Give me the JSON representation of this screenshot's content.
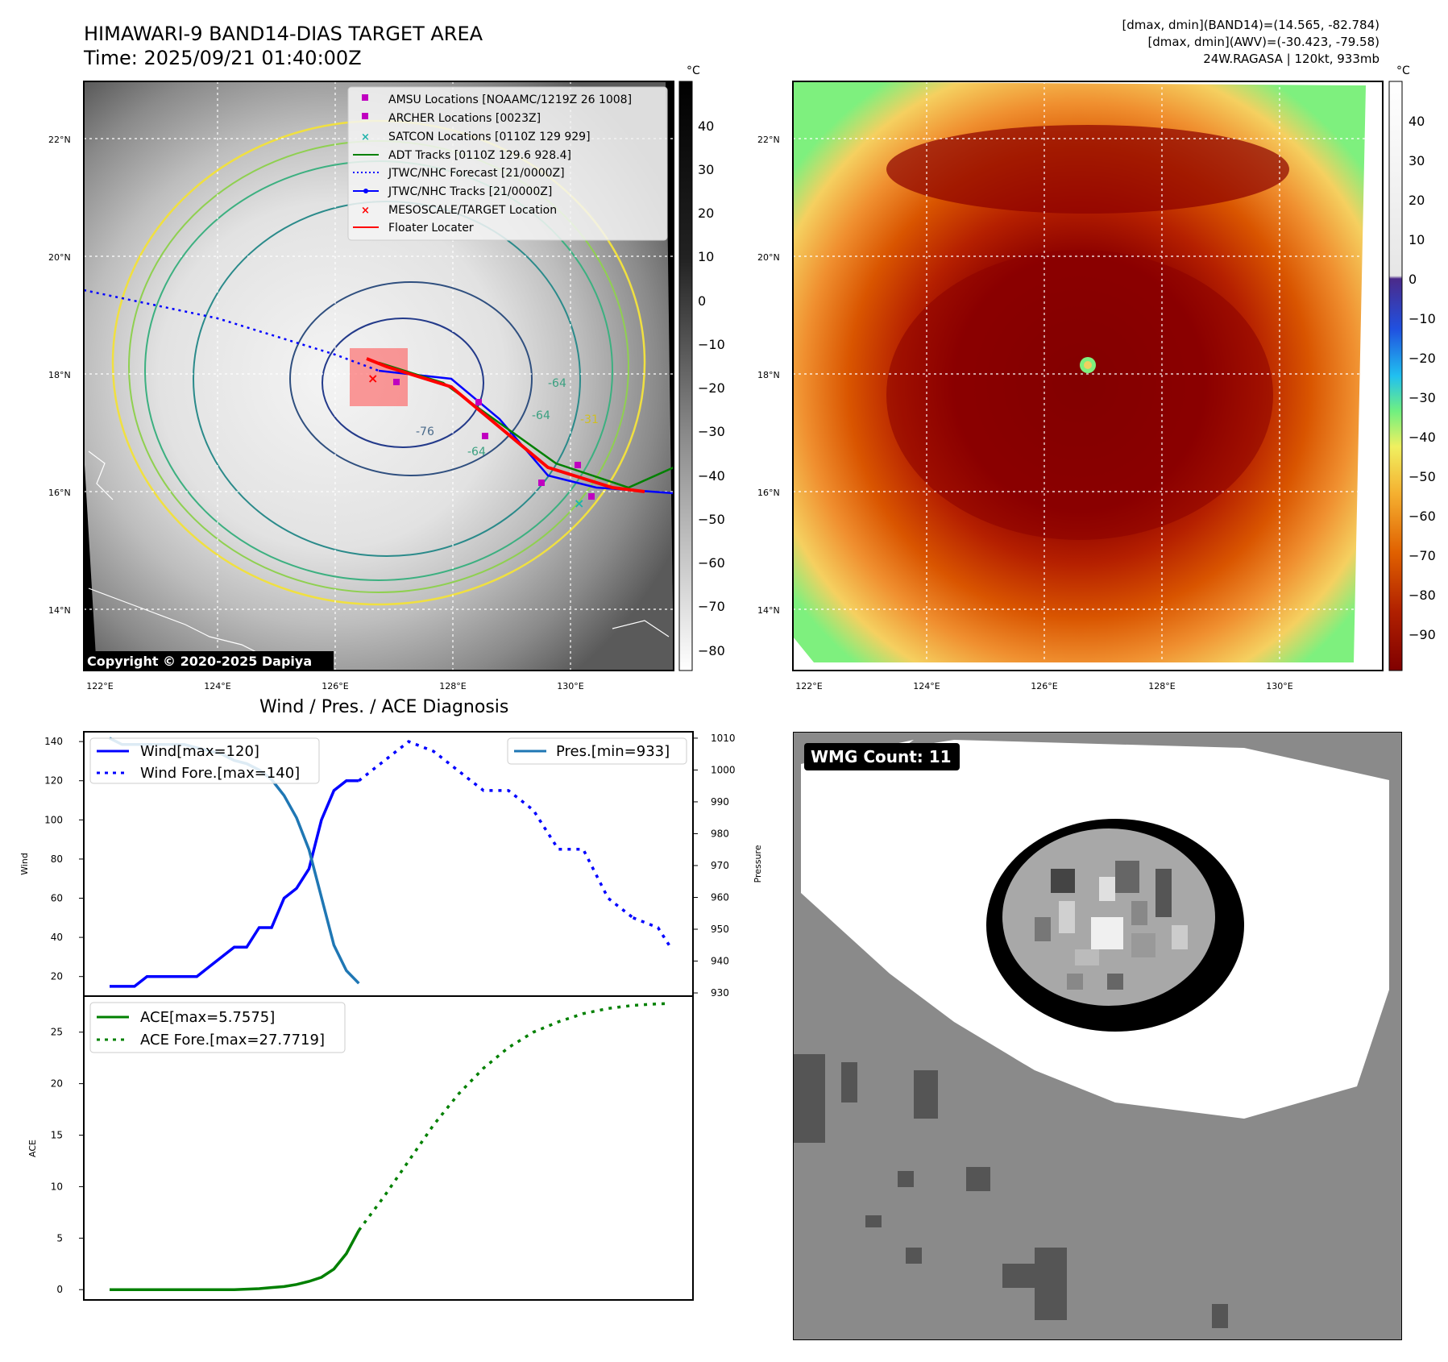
{
  "header": {
    "title_line1": "HIMAWARI-9 BAND14-DIAS TARGET AREA",
    "title_line2": "Time: 2025/09/21 01:40:00Z",
    "info_line1": "[dmax, dmin](BAND14)=(14.565, -82.784)",
    "info_line2": "[dmax, dmin](AWV)=(-30.423, -79.58)",
    "info_line3": "24W.RAGASA | 120kt, 933mb"
  },
  "map_axes": {
    "lat_labels": [
      "22°N",
      "20°N",
      "18°N",
      "16°N",
      "14°N"
    ],
    "lon_labels": [
      "122°E",
      "124°E",
      "126°E",
      "128°E",
      "130°E"
    ]
  },
  "left_map": {
    "copyright": "Copyright © 2020-2025 Dapiya",
    "colorbar_unit": "°C",
    "colorbar_ticks": [
      "40",
      "30",
      "20",
      "10",
      "0",
      "−10",
      "−20",
      "−30",
      "−40",
      "−50",
      "−60",
      "−70",
      "−80"
    ],
    "contour_labels": [
      "-76",
      "-64",
      "-64",
      "-64",
      "-31"
    ],
    "legend": [
      {
        "label": "AMSU Locations [NOAAMC/1219Z 26 1008]",
        "color": "#c000c0",
        "marker": "square"
      },
      {
        "label": "ARCHER Locations [0023Z]",
        "color": "#c000c0",
        "marker": "square"
      },
      {
        "label": "SATCON Locations [0110Z 129 929]",
        "color": "#20b2aa",
        "marker": "x"
      },
      {
        "label": "ADT Tracks [0110Z 129.6 928.4]",
        "color": "#008000",
        "marker": "line"
      },
      {
        "label": "JTWC/NHC Forecast [21/0000Z]",
        "color": "#0000ff",
        "marker": "dotted"
      },
      {
        "label": "JTWC/NHC Tracks [21/0000Z]",
        "color": "#0000ff",
        "marker": "line-dot"
      },
      {
        "label": "MESOSCALE/TARGET Location",
        "color": "#ff0000",
        "marker": "x"
      },
      {
        "label": "Floater Locater",
        "color": "#ff0000",
        "marker": "line"
      }
    ]
  },
  "right_map": {
    "colorbar_unit": "°C",
    "colorbar_ticks": [
      "40",
      "30",
      "20",
      "10",
      "0",
      "−10",
      "−20",
      "−30",
      "−40",
      "−50",
      "−60",
      "−70",
      "−80",
      "−90"
    ]
  },
  "diagnosis": {
    "title": "Wind / Pres. / ACE Diagnosis",
    "wind_ylabel": "Wind",
    "pres_ylabel": "Pressure",
    "ace_ylabel": "ACE",
    "legend_wind": "Wind[max=120]",
    "legend_wind_fore": "Wind Fore.[max=140]",
    "legend_pres": "Pres.[min=933]",
    "legend_ace": "ACE[max=5.7575]",
    "legend_ace_fore": "ACE Fore.[max=27.7719]"
  },
  "wmg": {
    "label": "WMG Count: 11"
  },
  "chart_data": [
    {
      "type": "line",
      "title": "Wind / Pres. / ACE Diagnosis",
      "ylabel": "Wind",
      "ylim": [
        10,
        145
      ],
      "yticks": [
        20,
        40,
        60,
        80,
        100,
        120,
        140
      ],
      "series": [
        {
          "name": "Wind[max=120]",
          "style": "solid",
          "color": "#0000ff",
          "x": [
            0,
            1,
            2,
            3,
            4,
            5,
            6,
            7,
            8,
            9,
            10,
            11,
            12,
            13,
            14,
            15,
            16,
            17,
            18,
            19,
            20
          ],
          "values": [
            15,
            15,
            15,
            20,
            20,
            20,
            20,
            20,
            25,
            30,
            35,
            35,
            45,
            45,
            60,
            65,
            75,
            100,
            115,
            120,
            120
          ]
        },
        {
          "name": "Wind Fore.[max=140]",
          "style": "dotted",
          "color": "#0000ff",
          "x": [
            20,
            22,
            24,
            26,
            28,
            30,
            32,
            34,
            36,
            38,
            40,
            42
          ],
          "values": [
            120,
            130,
            140,
            135,
            125,
            115,
            115,
            105,
            85,
            85,
            60,
            50
          ]
        },
        {
          "name": "",
          "style": "dotted",
          "color": "#0000ff",
          "x": [
            42,
            44,
            45
          ],
          "values": [
            50,
            45,
            35
          ]
        }
      ]
    },
    {
      "type": "line",
      "ylabel": "Pressure",
      "ylim": [
        929,
        1012
      ],
      "yticks": [
        930,
        940,
        950,
        960,
        970,
        980,
        990,
        1000,
        1010
      ],
      "series": [
        {
          "name": "Pres.[min=933]",
          "style": "solid",
          "color": "#1f77b4",
          "x": [
            0,
            1,
            2,
            3,
            4,
            5,
            6,
            7,
            8,
            9,
            10,
            11,
            12,
            13,
            14,
            15,
            16,
            17,
            18,
            19,
            20
          ],
          "values": [
            1010,
            1008,
            1008,
            1008,
            1008,
            1008,
            1008,
            1007,
            1006,
            1005,
            1003,
            1002,
            1000,
            997,
            992,
            985,
            975,
            960,
            945,
            937,
            933
          ]
        }
      ]
    },
    {
      "type": "line",
      "ylabel": "ACE",
      "ylim": [
        -1,
        28.5
      ],
      "yticks": [
        0,
        5,
        10,
        15,
        20,
        25
      ],
      "series": [
        {
          "name": "ACE[max=5.7575]",
          "style": "solid",
          "color": "#008000",
          "x": [
            0,
            2,
            4,
            6,
            8,
            10,
            11,
            12,
            13,
            14,
            15,
            16,
            17,
            18,
            19,
            20
          ],
          "values": [
            0,
            0,
            0,
            0,
            0,
            0,
            0.05,
            0.1,
            0.2,
            0.3,
            0.5,
            0.8,
            1.2,
            2.0,
            3.5,
            5.7575
          ]
        },
        {
          "name": "ACE Fore.[max=27.7719]",
          "style": "dotted",
          "color": "#008000",
          "x": [
            20,
            22,
            24,
            26,
            28,
            30,
            32,
            34,
            36,
            38,
            40,
            42,
            44,
            45
          ],
          "values": [
            5.7575,
            9,
            12.5,
            16,
            19,
            21.5,
            23.5,
            25,
            26,
            26.8,
            27.3,
            27.6,
            27.75,
            27.7719
          ]
        }
      ]
    }
  ]
}
